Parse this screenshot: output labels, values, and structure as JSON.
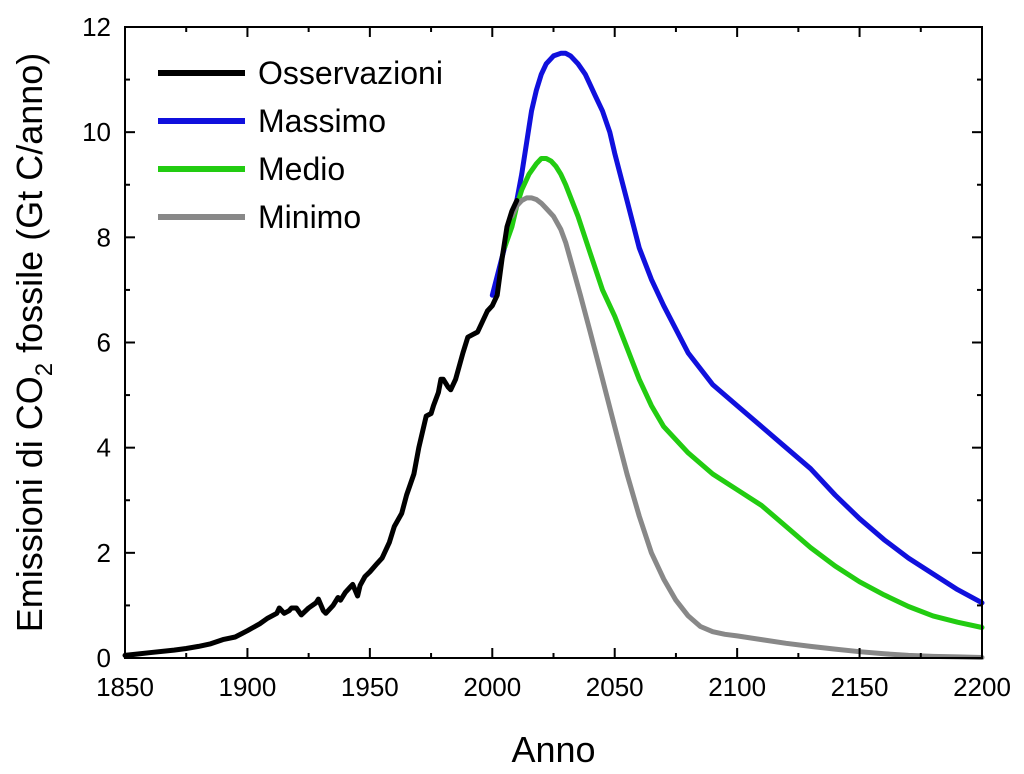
{
  "chart_data": {
    "type": "line",
    "xlabel": "Anno",
    "ylabel_parts": [
      "Emissioni di CO",
      "2",
      " fossile (Gt C/anno)"
    ],
    "xlim": [
      1850,
      2200
    ],
    "ylim": [
      0,
      12
    ],
    "x_ticks": [
      1850,
      1900,
      1950,
      2000,
      2050,
      2100,
      2150,
      2200
    ],
    "y_ticks": [
      0,
      2,
      4,
      6,
      8,
      10,
      12
    ],
    "grid": false,
    "legend_position": "top-left",
    "series": [
      {
        "name": "Osservazioni",
        "color": "#000000",
        "x": [
          1850,
          1860,
          1870,
          1875,
          1880,
          1885,
          1890,
          1895,
          1900,
          1905,
          1908,
          1910,
          1912,
          1913,
          1915,
          1917,
          1918,
          1920,
          1922,
          1925,
          1928,
          1929,
          1931,
          1932,
          1935,
          1937,
          1938,
          1940,
          1942,
          1943,
          1945,
          1946,
          1948,
          1950,
          1953,
          1955,
          1958,
          1960,
          1963,
          1965,
          1968,
          1970,
          1973,
          1975,
          1976,
          1978,
          1979,
          1980,
          1982,
          1983,
          1985,
          1988,
          1990,
          1992,
          1994,
          1996,
          1998,
          2000,
          2002,
          2004,
          2006,
          2008,
          2010
        ],
        "y": [
          0.05,
          0.1,
          0.15,
          0.18,
          0.22,
          0.27,
          0.35,
          0.4,
          0.52,
          0.65,
          0.75,
          0.8,
          0.85,
          0.95,
          0.85,
          0.9,
          0.95,
          0.95,
          0.82,
          0.95,
          1.05,
          1.12,
          0.9,
          0.85,
          1.0,
          1.15,
          1.1,
          1.25,
          1.35,
          1.4,
          1.18,
          1.38,
          1.55,
          1.64,
          1.8,
          1.9,
          2.2,
          2.5,
          2.75,
          3.1,
          3.5,
          4.0,
          4.6,
          4.65,
          4.8,
          5.05,
          5.3,
          5.3,
          5.15,
          5.1,
          5.3,
          5.8,
          6.1,
          6.15,
          6.2,
          6.4,
          6.6,
          6.7,
          6.9,
          7.6,
          8.2,
          8.5,
          8.7
        ]
      },
      {
        "name": "Massimo",
        "color": "#1010dd",
        "x": [
          2000,
          2005,
          2008,
          2010,
          2012,
          2014,
          2016,
          2018,
          2020,
          2022,
          2025,
          2028,
          2030,
          2032,
          2035,
          2038,
          2040,
          2042,
          2045,
          2048,
          2050,
          2055,
          2060,
          2065,
          2070,
          2080,
          2090,
          2100,
          2110,
          2120,
          2130,
          2140,
          2150,
          2160,
          2170,
          2180,
          2190,
          2200
        ],
        "y": [
          6.9,
          7.8,
          8.3,
          8.7,
          9.2,
          9.8,
          10.4,
          10.8,
          11.1,
          11.3,
          11.45,
          11.5,
          11.5,
          11.45,
          11.3,
          11.1,
          10.9,
          10.7,
          10.4,
          10.0,
          9.6,
          8.7,
          7.8,
          7.2,
          6.7,
          5.8,
          5.2,
          4.8,
          4.4,
          4.0,
          3.6,
          3.1,
          2.65,
          2.25,
          1.9,
          1.6,
          1.3,
          1.05
        ]
      },
      {
        "name": "Medio",
        "color": "#22cc11",
        "x": [
          2005,
          2008,
          2010,
          2012,
          2015,
          2018,
          2020,
          2022,
          2024,
          2026,
          2028,
          2030,
          2035,
          2040,
          2045,
          2050,
          2055,
          2060,
          2065,
          2070,
          2080,
          2090,
          2100,
          2110,
          2120,
          2130,
          2140,
          2150,
          2160,
          2170,
          2180,
          2190,
          2200
        ],
        "y": [
          7.8,
          8.2,
          8.6,
          8.9,
          9.2,
          9.4,
          9.5,
          9.5,
          9.45,
          9.35,
          9.2,
          9.0,
          8.4,
          7.7,
          7.0,
          6.5,
          5.9,
          5.3,
          4.8,
          4.4,
          3.9,
          3.5,
          3.2,
          2.9,
          2.5,
          2.1,
          1.75,
          1.45,
          1.2,
          0.98,
          0.8,
          0.68,
          0.58
        ]
      },
      {
        "name": "Minimo",
        "color": "#888888",
        "x": [
          2008,
          2010,
          2012,
          2014,
          2016,
          2018,
          2020,
          2022,
          2025,
          2028,
          2030,
          2033,
          2036,
          2040,
          2045,
          2050,
          2055,
          2060,
          2065,
          2070,
          2075,
          2080,
          2085,
          2090,
          2095,
          2100,
          2110,
          2120,
          2130,
          2140,
          2150,
          2160,
          2170,
          2180,
          2190,
          2200
        ],
        "y": [
          8.4,
          8.6,
          8.7,
          8.75,
          8.75,
          8.72,
          8.65,
          8.55,
          8.4,
          8.15,
          7.9,
          7.4,
          6.9,
          6.2,
          5.3,
          4.4,
          3.5,
          2.7,
          2.0,
          1.5,
          1.1,
          0.8,
          0.6,
          0.5,
          0.45,
          0.42,
          0.35,
          0.28,
          0.22,
          0.17,
          0.12,
          0.08,
          0.05,
          0.03,
          0.02,
          0.01
        ]
      }
    ]
  }
}
